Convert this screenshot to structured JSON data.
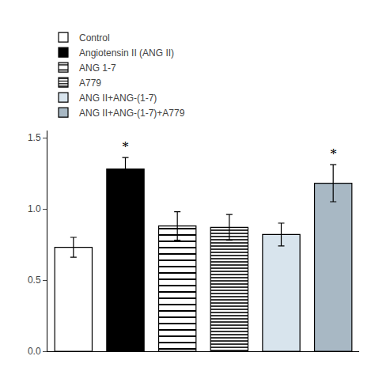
{
  "chart_data": {
    "type": "bar",
    "categories": [
      "Control",
      "Angiotensin II (ANG II)",
      "ANG 1-7",
      "A779",
      "ANG II+ANG-(1-7)",
      "ANG II+ANG-(1-7)+A779"
    ],
    "series": [
      {
        "name": "Control",
        "color": "white",
        "marker": "solid",
        "values": [
          0.73,
          null,
          null,
          null,
          null,
          null
        ],
        "errors": [
          0.07,
          null,
          null,
          null,
          null,
          null
        ]
      },
      {
        "name": "Angiotensin II (ANG II)",
        "color": "black",
        "marker": "solid",
        "values": [
          null,
          1.28,
          null,
          null,
          null,
          null
        ],
        "errors": [
          null,
          0.08,
          null,
          null,
          null,
          null
        ]
      },
      {
        "name": "ANG 1-7",
        "color": "white",
        "marker": "horizontal",
        "values": [
          null,
          null,
          0.88,
          null,
          null,
          null
        ],
        "errors": [
          null,
          null,
          0.1,
          null,
          null,
          null
        ]
      },
      {
        "name": "A779",
        "color": "white",
        "marker": "double_horizontal",
        "values": [
          null,
          null,
          null,
          0.87,
          null,
          null
        ],
        "errors": [
          null,
          null,
          null,
          0.09,
          null,
          null
        ]
      },
      {
        "name": "ANG II+ANG-(1-7)",
        "color": "#d8e4ed",
        "marker": "solid",
        "values": [
          null,
          null,
          null,
          null,
          0.82,
          null
        ],
        "errors": [
          null,
          null,
          null,
          null,
          0.08,
          null
        ]
      },
      {
        "name": "ANG II+ANG-(1-7)+A779",
        "color": "#a8b8c4",
        "marker": "solid",
        "values": [
          null,
          null,
          null,
          null,
          null,
          1.18
        ],
        "errors": [
          null,
          null,
          null,
          null,
          null,
          0.13
        ]
      }
    ],
    "ylim": [
      0.0,
      1.55
    ],
    "yticks": [
      {
        "value": 0.0,
        "label": "0.0"
      },
      {
        "value": 0.5,
        "label": "0.5"
      },
      {
        "value": 1.0,
        "label": "1.0"
      },
      {
        "value": 1.5,
        "label": "1.5"
      }
    ],
    "tick_labels": "y",
    "grid": false,
    "legend": "upper left",
    "annotations": [
      {
        "x": "Angiotensin II (ANG II)",
        "text": "*"
      },
      {
        "x": "ANG II+ANG-(1-7)+A779",
        "text": "*"
      }
    ]
  }
}
